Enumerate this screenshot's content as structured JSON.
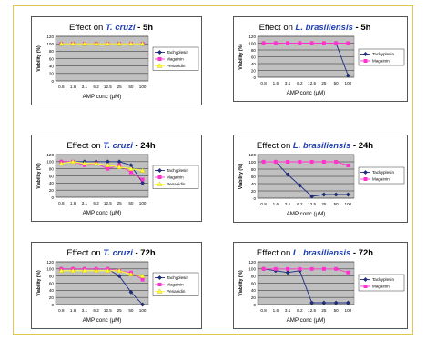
{
  "colors": {
    "tachyplesin": "#1f2e8a",
    "magainin": "#ff33cc",
    "penaeidin": "#ffff33",
    "plot_bg": "#c0c0c0"
  },
  "chart_data": [
    {
      "type": "line",
      "title": {
        "pre": "Effect on ",
        "species": "T. cruzi",
        "post": " - 5h"
      },
      "xlabel": "AMP conc (µM)",
      "ylabel": "Viability (%)",
      "categories": [
        "0.8",
        "1.6",
        "3.1",
        "6.2",
        "12.5",
        "25",
        "50",
        "100"
      ],
      "yticks": [
        "0",
        "20",
        "40",
        "60",
        "80",
        "100",
        "120"
      ],
      "ylim": [
        0,
        120
      ],
      "grid": true,
      "legend": "right",
      "series": [
        {
          "name": "Tachyplesin",
          "values": [
            100,
            100,
            100,
            100,
            100,
            100,
            100,
            100
          ]
        },
        {
          "name": "Magainin",
          "values": [
            100,
            100,
            100,
            100,
            100,
            100,
            100,
            100
          ]
        },
        {
          "name": "Penaeidin",
          "values": [
            100,
            100,
            100,
            100,
            100,
            100,
            100,
            100
          ]
        }
      ]
    },
    {
      "type": "line",
      "title": {
        "pre": "Effect on ",
        "species": "L. brasiliensis",
        "post": " - 5h"
      },
      "xlabel": "AMP conc (µM)",
      "ylabel": "Viability (%)",
      "categories": [
        "0.8",
        "1.6",
        "3.1",
        "6.2",
        "12.5",
        "25",
        "50",
        "100"
      ],
      "yticks": [
        "0",
        "20",
        "40",
        "60",
        "80",
        "100",
        "120"
      ],
      "ylim": [
        0,
        120
      ],
      "grid": true,
      "legend": "right",
      "series": [
        {
          "name": "Tachyplesin",
          "values": [
            100,
            100,
            100,
            100,
            100,
            100,
            100,
            5
          ]
        },
        {
          "name": "Magainin",
          "values": [
            100,
            100,
            100,
            100,
            100,
            100,
            100,
            100
          ]
        }
      ]
    },
    {
      "type": "line",
      "title": {
        "pre": "Effect on ",
        "species": "T. cruzi",
        "post": " - 24h"
      },
      "xlabel": "AMP conc (µM)",
      "ylabel": "Viability (%)",
      "categories": [
        "0.8",
        "1.6",
        "3.1",
        "6.2",
        "12.5",
        "25",
        "50",
        "100"
      ],
      "yticks": [
        "0",
        "20",
        "40",
        "60",
        "80",
        "100",
        "120"
      ],
      "ylim": [
        0,
        120
      ],
      "grid": true,
      "legend": "right",
      "series": [
        {
          "name": "Tachyplesin",
          "values": [
            100,
            100,
            100,
            100,
            100,
            100,
            90,
            40
          ]
        },
        {
          "name": "Magainin",
          "values": [
            100,
            100,
            90,
            95,
            80,
            90,
            70,
            50
          ]
        },
        {
          "name": "Penaeidin",
          "values": [
            95,
            100,
            95,
            95,
            90,
            85,
            80,
            75
          ]
        }
      ]
    },
    {
      "type": "line",
      "title": {
        "pre": "Effect on ",
        "species": "L. brasiliensis",
        "post": " - 24h"
      },
      "xlabel": "AMP conc (µM)",
      "ylabel": "Viability (%)",
      "categories": [
        "0.8",
        "1.6",
        "3.1",
        "6.2",
        "12.5",
        "25",
        "50",
        "100"
      ],
      "yticks": [
        "0",
        "20",
        "40",
        "60",
        "80",
        "100",
        "120"
      ],
      "ylim": [
        0,
        120
      ],
      "grid": true,
      "legend": "right",
      "series": [
        {
          "name": "Tachyplesin",
          "values": [
            100,
            100,
            65,
            35,
            5,
            10,
            10,
            10
          ]
        },
        {
          "name": "Magainin",
          "values": [
            100,
            100,
            100,
            100,
            100,
            100,
            100,
            90
          ]
        }
      ]
    },
    {
      "type": "line",
      "title": {
        "pre": "Effect on ",
        "species": "T. cruzi",
        "post": " - 72h"
      },
      "xlabel": "AMP conc (µM)",
      "ylabel": "Viability (%)",
      "categories": [
        "0.8",
        "1.6",
        "3.1",
        "6.2",
        "12.5",
        "25",
        "50",
        "100"
      ],
      "yticks": [
        "0",
        "20",
        "40",
        "60",
        "80",
        "100",
        "120"
      ],
      "ylim": [
        0,
        120
      ],
      "grid": true,
      "legend": "right",
      "series": [
        {
          "name": "Tachyplesin",
          "values": [
            100,
            100,
            100,
            100,
            100,
            80,
            35,
            0
          ]
        },
        {
          "name": "Magainin",
          "values": [
            100,
            100,
            100,
            100,
            100,
            95,
            90,
            70
          ]
        },
        {
          "name": "Penaeidin",
          "values": [
            95,
            95,
            95,
            95,
            95,
            95,
            85,
            80
          ]
        }
      ]
    },
    {
      "type": "line",
      "title": {
        "pre": "Effect on ",
        "species": "L. brasiliensis",
        "post": " - 72h"
      },
      "xlabel": "AMP conc (µM)",
      "ylabel": "Viability (%)",
      "categories": [
        "0.8",
        "1.6",
        "3.1",
        "6.2",
        "12.5",
        "25",
        "50",
        "100"
      ],
      "yticks": [
        "0",
        "20",
        "40",
        "60",
        "80",
        "100",
        "120"
      ],
      "ylim": [
        0,
        120
      ],
      "grid": true,
      "legend": "right",
      "series": [
        {
          "name": "Tachyplesin",
          "values": [
            100,
            95,
            90,
            95,
            5,
            5,
            5,
            5
          ]
        },
        {
          "name": "Magainin",
          "values": [
            100,
            100,
            100,
            100,
            100,
            100,
            100,
            90
          ]
        }
      ]
    }
  ]
}
